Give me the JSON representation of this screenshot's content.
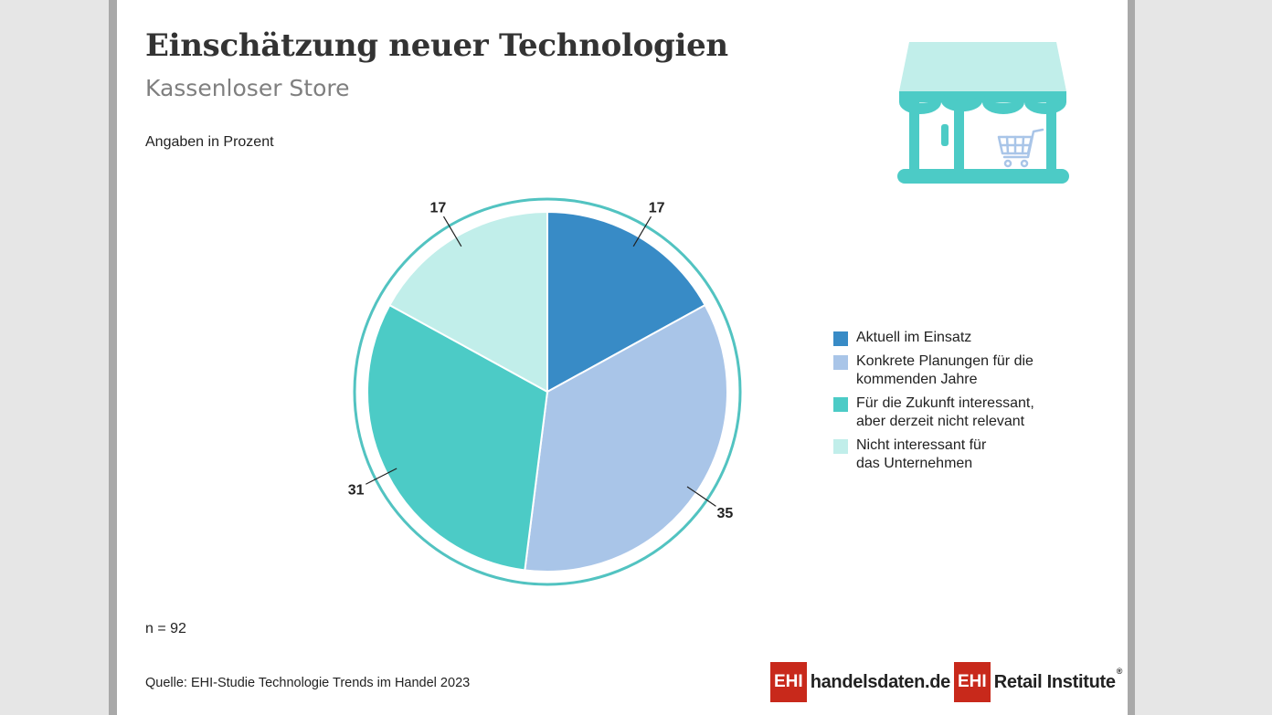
{
  "title": "Einschätzung neuer Technologien",
  "subtitle": "Kassenloser Store",
  "units_note": "Angaben in Prozent",
  "sample_size": "n = 92",
  "source": "Quelle: EHI-Studie Technologie Trends im Handel 2023",
  "logos": {
    "handelsdaten": {
      "box": "EHI",
      "text": "handelsdaten.de"
    },
    "retail": {
      "box": "EHI",
      "text": "Retail Institute",
      "mark": "®"
    }
  },
  "icons": {
    "store": "shop-icon",
    "cart": "shopping-cart-icon"
  },
  "colors": {
    "accent_ring": "#52c3c1",
    "brand_red": "#c8291b"
  },
  "chart_data": {
    "type": "pie",
    "title": "Einschätzung neuer Technologien",
    "subtitle": "Kassenloser Store",
    "unit": "Angaben in Prozent",
    "legend_position": "right",
    "slices": [
      {
        "label": "Aktuell im Einsatz",
        "value": 17,
        "color": "#388bc6"
      },
      {
        "label": "Konkrete Planungen für die\nkommenden Jahre",
        "value": 35,
        "color": "#a9c5e8"
      },
      {
        "label": "Für die Zukunft interessant,\naber derzeit nicht relevant",
        "value": 31,
        "color": "#4ccbc6"
      },
      {
        "label": "Nicht interessant für\ndas Unternehmen",
        "value": 17,
        "color": "#c1eeea"
      }
    ]
  }
}
